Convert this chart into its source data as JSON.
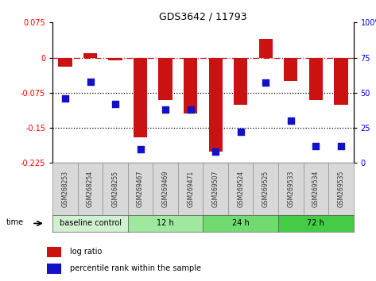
{
  "title": "GDS3642 / 11793",
  "samples": [
    "GSM268253",
    "GSM268254",
    "GSM268255",
    "GSM269467",
    "GSM269469",
    "GSM269471",
    "GSM269507",
    "GSM269524",
    "GSM269525",
    "GSM269533",
    "GSM269534",
    "GSM269535"
  ],
  "log_ratio": [
    -0.02,
    0.01,
    -0.005,
    -0.17,
    -0.09,
    -0.12,
    -0.2,
    -0.1,
    0.04,
    -0.05,
    -0.09,
    -0.1
  ],
  "percentile_rank": [
    46,
    58,
    42,
    10,
    38,
    38,
    8,
    22,
    57,
    30,
    12,
    12
  ],
  "ylim_left": [
    -0.225,
    0.075
  ],
  "ylim_right": [
    0,
    100
  ],
  "yticks_left": [
    0.075,
    0,
    -0.075,
    -0.15,
    -0.225
  ],
  "yticks_right": [
    100,
    75,
    50,
    25,
    0
  ],
  "hlines": [
    0,
    -0.075,
    -0.15
  ],
  "hline_styles": [
    "dashdot",
    "dotted",
    "dotted"
  ],
  "groups": [
    {
      "label": "baseline control",
      "start": 0,
      "end": 3,
      "color": "#d0f0d0"
    },
    {
      "label": "12 h",
      "start": 3,
      "end": 6,
      "color": "#a0e8a0"
    },
    {
      "label": "24 h",
      "start": 6,
      "end": 9,
      "color": "#70dc70"
    },
    {
      "label": "72 h",
      "start": 9,
      "end": 12,
      "color": "#44cc44"
    }
  ],
  "bar_color": "#cc1111",
  "dot_color": "#1111cc",
  "bar_width": 0.55,
  "dot_size": 35,
  "time_label": "time",
  "legend_bar_label": "log ratio",
  "legend_dot_label": "percentile rank within the sample",
  "background_color": "#ffffff"
}
